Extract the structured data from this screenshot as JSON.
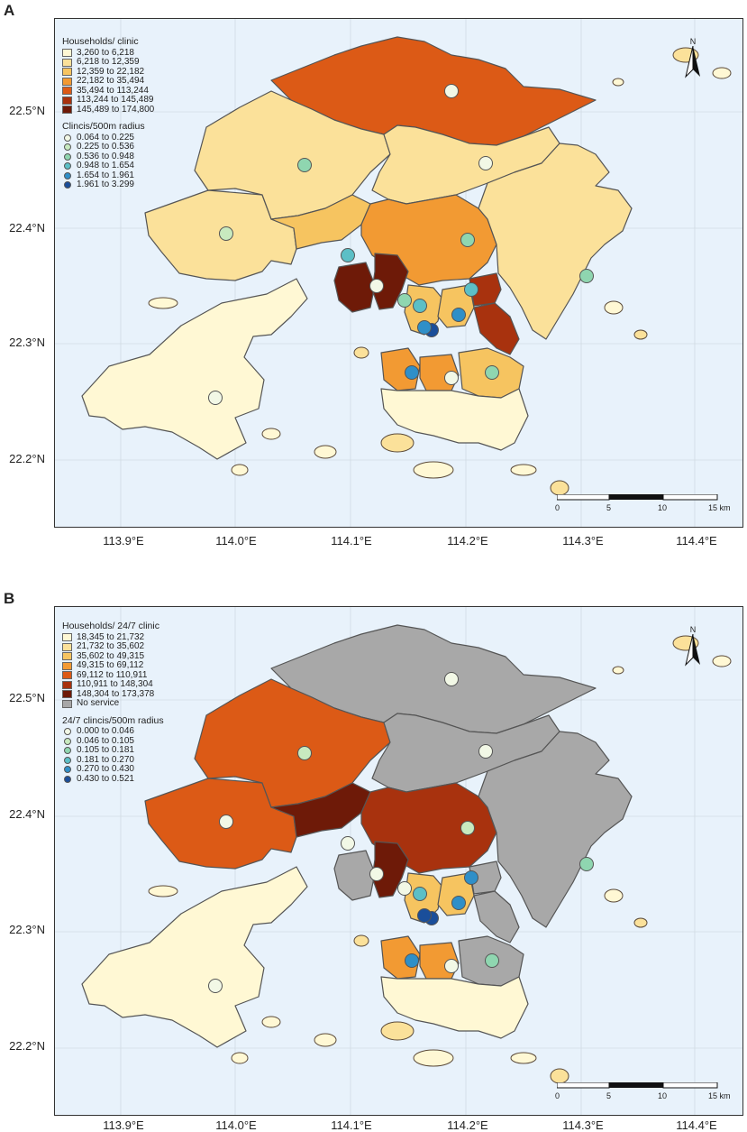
{
  "panels": [
    {
      "letter": "A",
      "fill_legend_title": "Households/ clinic",
      "fill_classes": [
        {
          "label": "3,260 to 6,218",
          "color": "#fff8d4"
        },
        {
          "label": "6,218 to 12,359",
          "color": "#fbe19a"
        },
        {
          "label": "12,359 to 22,182",
          "color": "#f6c460"
        },
        {
          "label": "22,182 to 35,494",
          "color": "#f29a33"
        },
        {
          "label": "35,494 to 113,244",
          "color": "#dc5a16"
        },
        {
          "label": "113,244 to 145,489",
          "color": "#a8320e"
        },
        {
          "label": "145,489 to 174,800",
          "color": "#6e1a08"
        }
      ],
      "dot_legend_title": "Clincis/500m radius",
      "dot_classes": [
        {
          "label": "0.064 to 0.225",
          "color": "#f2f8e6"
        },
        {
          "label": "0.225 to 0.536",
          "color": "#c8eabf"
        },
        {
          "label": "0.536 to 0.948",
          "color": "#8fd6b0"
        },
        {
          "label": "0.948 to 1.654",
          "color": "#5cbfc6"
        },
        {
          "label": "1.654 to 1.961",
          "color": "#2f8fc8"
        },
        {
          "label": "1.961 to 3.299",
          "color": "#1a4e9a"
        }
      ],
      "regions_color_index": [
        0,
        1,
        4,
        1,
        2,
        1,
        3,
        1,
        6,
        6,
        2,
        2,
        5,
        5,
        3,
        3,
        2,
        0
      ],
      "dots_color_index": [
        0,
        2,
        1,
        0,
        2,
        2,
        3,
        0,
        3,
        5,
        4,
        0,
        2,
        4,
        3,
        4,
        2,
        0
      ]
    },
    {
      "letter": "B",
      "fill_legend_title": "Households/ 24/7 clinic",
      "fill_classes": [
        {
          "label": "18,345 to 21,732",
          "color": "#fff8d4"
        },
        {
          "label": "21,732 to 35,602",
          "color": "#fbe19a"
        },
        {
          "label": "35,602 to 49,315",
          "color": "#f6c460"
        },
        {
          "label": "49,315 to 69,112",
          "color": "#f29a33"
        },
        {
          "label": "69,112 to 110,911",
          "color": "#dc5a16"
        },
        {
          "label": "110,911 to 148,304",
          "color": "#a8320e"
        },
        {
          "label": "148,304 to 173,378",
          "color": "#6e1a08"
        },
        {
          "label": "No service",
          "color": "#a8a8a8"
        }
      ],
      "dot_legend_title": "24/7 clincis/500m radius",
      "dot_classes": [
        {
          "label": "0.000 to 0.046",
          "color": "#f2f8e6"
        },
        {
          "label": "0.046 to 0.105",
          "color": "#c8eabf"
        },
        {
          "label": "0.105 to 0.181",
          "color": "#8fd6b0"
        },
        {
          "label": "0.181 to 0.270",
          "color": "#5cbfc6"
        },
        {
          "label": "0.270 to 0.430",
          "color": "#2f8fc8"
        },
        {
          "label": "0.430 to 0.521",
          "color": "#1a4e9a"
        }
      ],
      "regions_color_index": [
        0,
        4,
        7,
        4,
        6,
        7,
        5,
        7,
        7,
        6,
        2,
        2,
        7,
        7,
        3,
        3,
        7,
        0
      ],
      "dots_color_index": [
        0,
        1,
        0,
        0,
        1,
        0,
        0,
        0,
        3,
        5,
        4,
        0,
        2,
        4,
        4,
        5,
        2,
        0
      ]
    }
  ],
  "lat_labels": [
    "22.5°N",
    "22.4°N",
    "22.3°N",
    "22.2°N"
  ],
  "lon_labels": [
    "113.9°E",
    "114.0°E",
    "114.1°E",
    "114.2°E",
    "114.3°E",
    "114.4°E"
  ],
  "scale": {
    "ticks": [
      "0",
      "5",
      "10",
      "15 km"
    ]
  },
  "north_label": "N",
  "colors": {
    "sea": "#e8f2fb",
    "grid": "#c9d3dc",
    "border": "#555555",
    "coast": "#5a4a3a"
  }
}
